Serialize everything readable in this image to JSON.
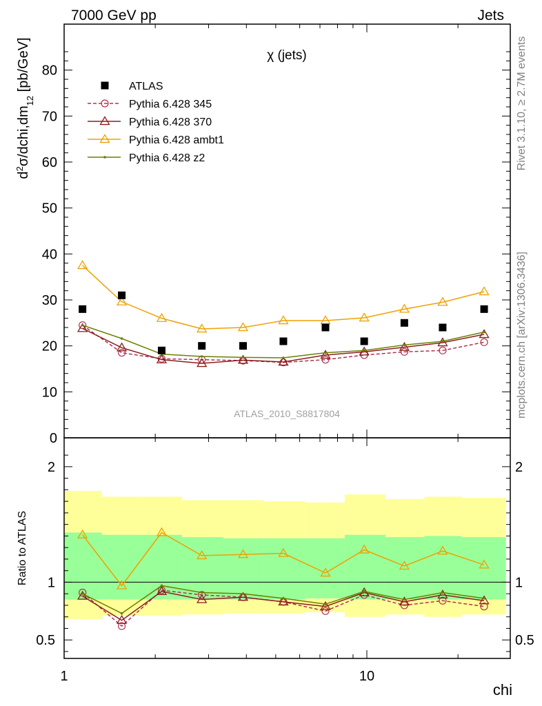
{
  "header": {
    "left": "7000 GeV pp",
    "right": "Jets"
  },
  "side_labels": {
    "rivet": "Rivet 3.1.10, ≥ 2.7M events",
    "mcplots": "mcplots.cern.ch [arXiv:1306.3436]"
  },
  "chart_data": [
    {
      "type": "scatter",
      "title": "χ (jets)",
      "analysis_label": "ATLAS_2010_S8817804",
      "xlabel": "chi",
      "ylabel": "d²σ/dchi,dm₁₂ [pb/GeV]",
      "xscale": "log",
      "xlim": [
        1,
        30
      ],
      "ylim": [
        0,
        90
      ],
      "yticks": [
        0,
        10,
        20,
        30,
        40,
        50,
        60,
        70,
        80
      ],
      "xticks": [
        1,
        10
      ],
      "legend_position": "top-left",
      "x": [
        1.15,
        1.55,
        2.1,
        2.85,
        3.9,
        5.3,
        7.3,
        9.8,
        13.3,
        17.8,
        24.4
      ],
      "series": [
        {
          "name": "ATLAS",
          "style": "marker-square",
          "color": "#000000",
          "values": [
            28,
            31,
            19,
            20,
            20,
            21,
            24,
            21,
            25,
            24,
            28
          ]
        },
        {
          "name": "Pythia 6.428 345",
          "style": "dashed-circle",
          "color": "#b03050",
          "values": [
            24.5,
            18.5,
            17.2,
            17.0,
            16.8,
            16.4,
            17.0,
            18.0,
            18.7,
            19.0,
            20.8
          ]
        },
        {
          "name": "Pythia 6.428 370",
          "style": "solid-triangle",
          "color": "#8b1c1c",
          "values": [
            23.8,
            19.6,
            17.0,
            16.2,
            16.9,
            16.5,
            18.0,
            18.7,
            19.7,
            20.7,
            22.5
          ]
        },
        {
          "name": "Pythia 6.428 ambt1",
          "style": "solid-open-triangle",
          "color": "#f0a000",
          "values": [
            37.5,
            29.6,
            26.0,
            23.7,
            24.0,
            25.5,
            25.5,
            26.1,
            28.0,
            29.5,
            31.8
          ]
        },
        {
          "name": "Pythia 6.428 z2",
          "style": "solid-dot",
          "color": "#6b7f00",
          "values": [
            24.5,
            21.6,
            18.2,
            17.7,
            17.5,
            17.4,
            18.5,
            19.0,
            20.2,
            21.0,
            23.0
          ]
        }
      ]
    },
    {
      "type": "line",
      "ylabel": "Ratio to ATLAS",
      "xlabel": "chi",
      "xscale": "log",
      "xlim": [
        1,
        30
      ],
      "ylim": [
        0.34,
        2.25
      ],
      "yticks": [
        0.5,
        1,
        2
      ],
      "reference": 1,
      "band_edges": [
        1,
        1.33,
        1.8,
        2.45,
        3.35,
        4.55,
        6.25,
        8.45,
        11.5,
        15.5,
        20.5,
        28.8
      ],
      "outer_band": {
        "color": "#ffff99",
        "low": [
          0.68,
          0.71,
          0.71,
          0.72,
          0.73,
          0.73,
          0.74,
          0.7,
          0.72,
          0.7,
          0.72
        ],
        "high": [
          1.79,
          1.74,
          1.74,
          1.71,
          1.71,
          1.7,
          1.69,
          1.76,
          1.72,
          1.74,
          1.73
        ]
      },
      "inner_band": {
        "color": "#99ff99",
        "low": [
          0.85,
          0.85,
          0.85,
          0.85,
          0.85,
          0.85,
          0.86,
          0.85,
          0.85,
          0.85,
          0.85
        ],
        "high": [
          1.43,
          1.41,
          1.41,
          1.39,
          1.38,
          1.38,
          1.38,
          1.41,
          1.39,
          1.4,
          1.39
        ]
      },
      "x": [
        1.15,
        1.55,
        2.1,
        2.85,
        3.9,
        5.3,
        7.3,
        9.8,
        13.3,
        17.8,
        24.4
      ],
      "series": [
        {
          "name": "Pythia 6.428 345",
          "style": "dashed-circle",
          "color": "#b03050",
          "values": [
            0.91,
            0.62,
            0.93,
            0.89,
            0.87,
            0.83,
            0.75,
            0.89,
            0.8,
            0.84,
            0.79
          ]
        },
        {
          "name": "Pythia 6.428 370",
          "style": "solid-triangle",
          "color": "#8b1c1c",
          "values": [
            0.88,
            0.67,
            0.92,
            0.85,
            0.87,
            0.83,
            0.79,
            0.91,
            0.83,
            0.89,
            0.84
          ]
        },
        {
          "name": "Pythia 6.428 ambt1",
          "style": "solid-open-triangle",
          "color": "#f0a000",
          "values": [
            1.41,
            0.97,
            1.43,
            1.23,
            1.24,
            1.25,
            1.08,
            1.28,
            1.14,
            1.27,
            1.15
          ]
        },
        {
          "name": "Pythia 6.428 z2",
          "style": "solid-dot",
          "color": "#6b7f00",
          "values": [
            0.9,
            0.73,
            0.97,
            0.91,
            0.9,
            0.86,
            0.81,
            0.92,
            0.85,
            0.91,
            0.86
          ]
        }
      ]
    }
  ]
}
